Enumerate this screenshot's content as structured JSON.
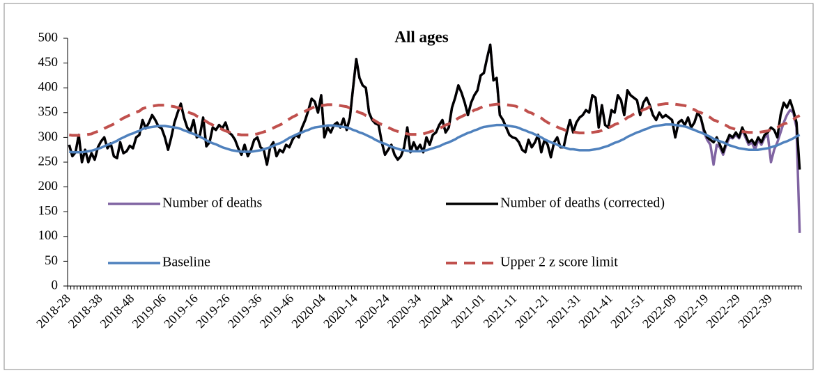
{
  "chart_data": {
    "type": "line",
    "title": "All ages",
    "categories": [
      "2018-28",
      null,
      null,
      null,
      null,
      null,
      null,
      null,
      null,
      null,
      "2018-38",
      null,
      null,
      null,
      null,
      null,
      null,
      null,
      null,
      null,
      "2018-48",
      null,
      null,
      null,
      null,
      null,
      null,
      null,
      null,
      null,
      "2019-06",
      null,
      null,
      null,
      null,
      null,
      null,
      null,
      null,
      null,
      "2019-16",
      null,
      null,
      null,
      null,
      null,
      null,
      null,
      null,
      null,
      "2019-26",
      null,
      null,
      null,
      null,
      null,
      null,
      null,
      null,
      null,
      "2019-36",
      null,
      null,
      null,
      null,
      null,
      null,
      null,
      null,
      null,
      "2019-46",
      null,
      null,
      null,
      null,
      null,
      null,
      null,
      null,
      null,
      "2020-04",
      null,
      null,
      null,
      null,
      null,
      null,
      null,
      null,
      null,
      "2020-14",
      null,
      null,
      null,
      null,
      null,
      null,
      null,
      null,
      null,
      "2020-24",
      null,
      null,
      null,
      null,
      null,
      null,
      null,
      null,
      null,
      "2020-34",
      null,
      null,
      null,
      null,
      null,
      null,
      null,
      null,
      null,
      "2020-44",
      null,
      null,
      null,
      null,
      null,
      null,
      null,
      null,
      null,
      "2021-01",
      null,
      null,
      null,
      null,
      null,
      null,
      null,
      null,
      null,
      "2021-11",
      null,
      null,
      null,
      null,
      null,
      null,
      null,
      null,
      null,
      "2021-21",
      null,
      null,
      null,
      null,
      null,
      null,
      null,
      null,
      null,
      "2021-31",
      null,
      null,
      null,
      null,
      null,
      null,
      null,
      null,
      null,
      "2021-41",
      null,
      null,
      null,
      null,
      null,
      null,
      null,
      null,
      null,
      "2021-51",
      null,
      null,
      null,
      null,
      null,
      null,
      null,
      null,
      null,
      "2022-09",
      null,
      null,
      null,
      null,
      null,
      null,
      null,
      null,
      null,
      "2022-19",
      null,
      null,
      null,
      null,
      null,
      null,
      null,
      null,
      null,
      "2022-29",
      null,
      null,
      null,
      null,
      null,
      null,
      null,
      null,
      null,
      "2022-39",
      null,
      null,
      null,
      null,
      null,
      null,
      null,
      null,
      null
    ],
    "series": [
      {
        "name": "Number of deaths",
        "color": "#8064a2",
        "values": [
          285,
          262,
          270,
          305,
          250,
          275,
          250,
          268,
          255,
          280,
          292,
          300,
          278,
          288,
          262,
          258,
          290,
          268,
          272,
          283,
          278,
          300,
          305,
          335,
          318,
          330,
          345,
          335,
          322,
          318,
          300,
          275,
          300,
          330,
          350,
          368,
          340,
          320,
          312,
          335,
          300,
          305,
          340,
          282,
          290,
          320,
          315,
          325,
          318,
          330,
          310,
          305,
          295,
          278,
          265,
          285,
          262,
          275,
          295,
          300,
          280,
          275,
          245,
          280,
          290,
          262,
          275,
          270,
          285,
          280,
          295,
          305,
          300,
          320,
          335,
          355,
          378,
          372,
          350,
          385,
          300,
          320,
          310,
          325,
          330,
          320,
          338,
          315,
          340,
          400,
          458,
          420,
          405,
          400,
          350,
          335,
          328,
          325,
          290,
          265,
          275,
          285,
          265,
          255,
          262,
          280,
          320,
          270,
          290,
          275,
          285,
          270,
          300,
          285,
          305,
          310,
          325,
          335,
          310,
          320,
          360,
          380,
          405,
          390,
          370,
          345,
          370,
          385,
          395,
          425,
          430,
          460,
          487,
          415,
          420,
          345,
          335,
          320,
          305,
          300,
          298,
          290,
          275,
          270,
          295,
          280,
          290,
          305,
          270,
          295,
          285,
          260,
          290,
          300,
          280,
          280,
          310,
          335,
          310,
          330,
          340,
          345,
          355,
          350,
          385,
          380,
          320,
          365,
          325,
          320,
          355,
          350,
          385,
          375,
          345,
          395,
          385,
          380,
          375,
          345,
          370,
          380,
          365,
          345,
          335,
          350,
          340,
          345,
          340,
          335,
          300,
          330,
          335,
          325,
          340,
          320,
          330,
          350,
          340,
          310,
          295,
          285,
          245,
          285,
          280,
          265,
          285,
          300,
          298,
          305,
          298,
          315,
          300,
          285,
          290,
          275,
          295,
          285,
          300,
          305,
          250,
          275,
          290,
          310,
          330,
          345,
          355,
          350,
          320,
          107
        ]
      },
      {
        "name": "Number of deaths (corrected)",
        "color": "#000000",
        "values": [
          285,
          262,
          270,
          305,
          250,
          275,
          250,
          268,
          255,
          280,
          292,
          300,
          278,
          288,
          262,
          258,
          290,
          268,
          272,
          283,
          278,
          300,
          305,
          335,
          318,
          330,
          345,
          335,
          322,
          318,
          300,
          275,
          300,
          330,
          350,
          368,
          340,
          320,
          312,
          335,
          300,
          305,
          340,
          282,
          290,
          320,
          315,
          325,
          318,
          330,
          310,
          305,
          295,
          278,
          265,
          285,
          262,
          275,
          295,
          300,
          280,
          275,
          245,
          280,
          290,
          262,
          275,
          270,
          285,
          280,
          295,
          305,
          300,
          320,
          335,
          355,
          378,
          372,
          350,
          385,
          300,
          320,
          310,
          325,
          330,
          320,
          338,
          315,
          340,
          400,
          458,
          420,
          405,
          400,
          350,
          335,
          328,
          325,
          290,
          265,
          275,
          285,
          265,
          255,
          262,
          280,
          320,
          270,
          290,
          275,
          285,
          270,
          300,
          285,
          305,
          310,
          325,
          335,
          310,
          320,
          360,
          380,
          405,
          390,
          370,
          345,
          370,
          385,
          395,
          425,
          430,
          460,
          487,
          415,
          420,
          345,
          335,
          320,
          305,
          300,
          298,
          290,
          275,
          270,
          295,
          280,
          290,
          305,
          270,
          295,
          285,
          260,
          290,
          300,
          280,
          280,
          310,
          335,
          310,
          330,
          340,
          345,
          355,
          350,
          385,
          380,
          320,
          365,
          325,
          320,
          355,
          350,
          385,
          375,
          345,
          395,
          385,
          380,
          375,
          345,
          370,
          380,
          365,
          345,
          335,
          350,
          340,
          345,
          340,
          335,
          300,
          330,
          335,
          325,
          340,
          320,
          330,
          350,
          340,
          315,
          300,
          295,
          290,
          300,
          285,
          270,
          290,
          305,
          300,
          310,
          300,
          320,
          305,
          290,
          295,
          285,
          300,
          290,
          305,
          310,
          320,
          315,
          300,
          345,
          370,
          360,
          375,
          355,
          330,
          235
        ]
      },
      {
        "name": "Baseline",
        "color": "#4f81bd",
        "values": [
          271,
          270,
          270,
          270,
          270,
          271,
          272,
          273,
          275,
          277,
          279,
          282,
          285,
          287,
          290,
          293,
          297,
          300,
          303,
          306,
          308,
          311,
          313,
          317,
          319,
          320,
          321,
          322,
          323,
          323,
          323,
          322,
          321,
          320,
          319,
          317,
          314,
          312,
          309,
          307,
          304,
          301,
          298,
          294,
          291,
          288,
          286,
          283,
          280,
          278,
          276,
          274,
          273,
          272,
          271,
          271,
          271,
          271,
          272,
          273,
          274,
          276,
          278,
          280,
          283,
          286,
          288,
          291,
          295,
          299,
          302,
          305,
          308,
          310,
          313,
          315,
          318,
          320,
          321,
          322,
          323,
          324,
          324,
          324,
          323,
          322,
          321,
          320,
          318,
          315,
          313,
          310,
          308,
          305,
          302,
          299,
          295,
          292,
          289,
          287,
          284,
          281,
          279,
          277,
          275,
          274,
          273,
          272,
          272,
          272,
          272,
          273,
          274,
          276,
          278,
          280,
          282,
          285,
          288,
          290,
          293,
          296,
          300,
          303,
          306,
          309,
          311,
          314,
          316,
          319,
          321,
          322,
          323,
          324,
          325,
          325,
          325,
          324,
          323,
          322,
          321,
          319,
          316,
          314,
          311,
          309,
          306,
          303,
          300,
          296,
          293,
          290,
          288,
          285,
          282,
          280,
          278,
          276,
          276,
          275,
          274,
          274,
          274,
          274,
          275,
          276,
          277,
          279,
          281,
          283,
          286,
          289,
          291,
          294,
          297,
          301,
          304,
          307,
          310,
          312,
          315,
          317,
          320,
          322,
          323,
          324,
          325,
          326,
          326,
          326,
          325,
          324,
          323,
          322,
          320,
          317,
          315,
          312,
          310,
          307,
          304,
          301,
          297,
          295,
          292,
          290,
          287,
          284,
          282,
          280,
          278,
          277,
          276,
          275,
          275,
          275,
          275,
          276,
          277,
          278,
          280,
          282,
          284,
          287,
          290,
          292,
          295,
          298,
          302,
          305
        ]
      },
      {
        "name": "Upper 2 z score limit",
        "color": "#c0504d",
        "dashed": true,
        "values": [
          305,
          304,
          304,
          304,
          304,
          305,
          306,
          307,
          310,
          312,
          314,
          318,
          321,
          324,
          327,
          330,
          335,
          339,
          342,
          345,
          348,
          351,
          353,
          358,
          360,
          362,
          363,
          364,
          365,
          365,
          365,
          364,
          363,
          362,
          360,
          358,
          355,
          352,
          349,
          347,
          343,
          340,
          336,
          332,
          328,
          325,
          322,
          319,
          316,
          313,
          311,
          309,
          307,
          306,
          305,
          305,
          305,
          305,
          306,
          307,
          309,
          311,
          313,
          316,
          319,
          322,
          325,
          328,
          333,
          337,
          341,
          344,
          348,
          350,
          353,
          356,
          359,
          362,
          363,
          364,
          365,
          366,
          366,
          366,
          365,
          364,
          363,
          362,
          359,
          356,
          353,
          350,
          348,
          344,
          341,
          337,
          333,
          329,
          326,
          324,
          320,
          317,
          314,
          312,
          310,
          309,
          307,
          306,
          306,
          306,
          306,
          307,
          309,
          311,
          313,
          316,
          318,
          321,
          325,
          327,
          330,
          334,
          339,
          342,
          345,
          349,
          351,
          355,
          357,
          360,
          363,
          364,
          365,
          366,
          367,
          367,
          367,
          366,
          365,
          364,
          363,
          360,
          357,
          355,
          351,
          349,
          345,
          342,
          339,
          334,
          330,
          327,
          325,
          321,
          318,
          316,
          313,
          311,
          311,
          310,
          309,
          309,
          309,
          309,
          310,
          311,
          312,
          314,
          317,
          319,
          322,
          326,
          328,
          332,
          335,
          340,
          343,
          347,
          350,
          352,
          356,
          358,
          362,
          364,
          365,
          366,
          367,
          368,
          368,
          368,
          367,
          366,
          365,
          364,
          362,
          358,
          356,
          352,
          350,
          347,
          343,
          340,
          335,
          333,
          329,
          327,
          324,
          320,
          318,
          316,
          313,
          312,
          311,
          310,
          310,
          310,
          310,
          311,
          312,
          313,
          316,
          318,
          320,
          324,
          327,
          329,
          333,
          336,
          341,
          344
        ]
      }
    ],
    "ylim": [
      0,
      500
    ],
    "yticks": [
      0,
      50,
      100,
      150,
      200,
      250,
      300,
      350,
      400,
      450,
      500
    ],
    "grid": false,
    "legend": "center"
  }
}
